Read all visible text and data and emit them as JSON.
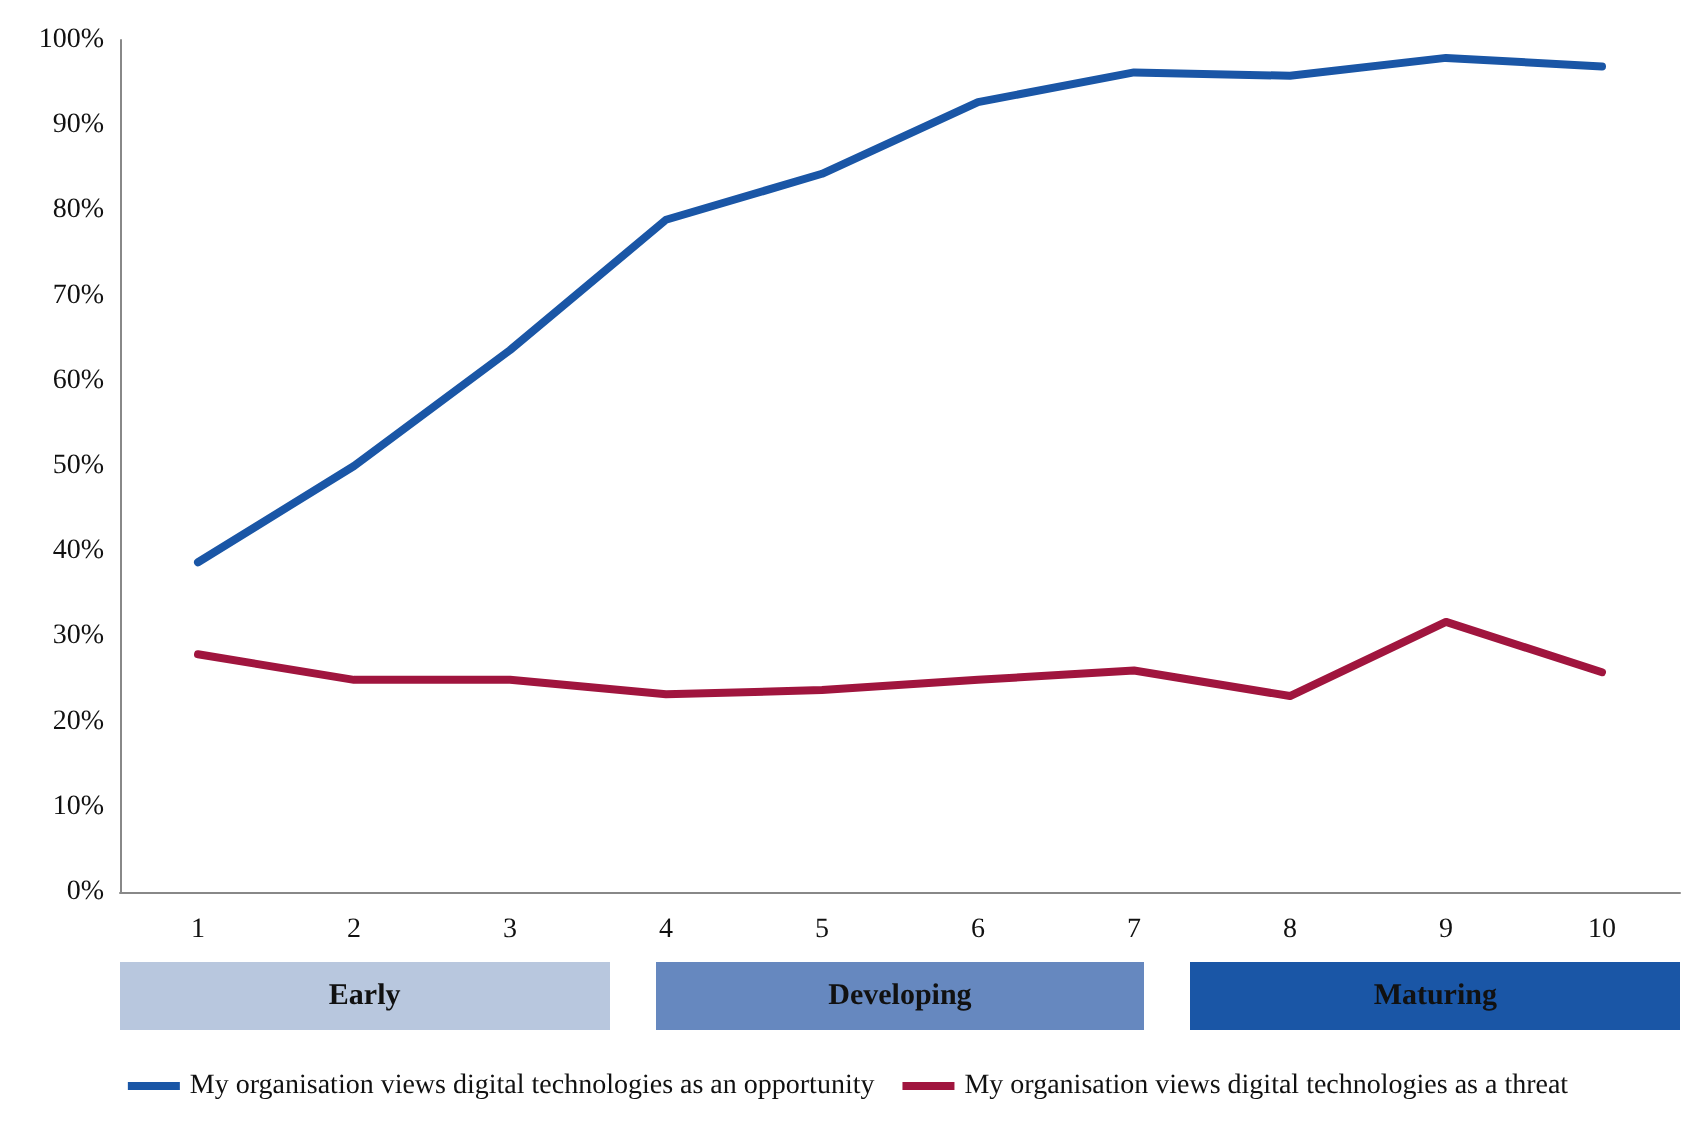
{
  "chart_data": {
    "type": "line",
    "categories": [
      "1",
      "2",
      "3",
      "4",
      "5",
      "6",
      "7",
      "8",
      "9",
      "10"
    ],
    "series": [
      {
        "name": "My organisation views digital technologies as an opportunity",
        "color": "#1a56a6",
        "values": [
          38.7,
          50,
          63.6,
          78.9,
          84.3,
          92.7,
          96.2,
          95.8,
          97.9,
          96.9
        ]
      },
      {
        "name": "My organisation views digital technologies as a threat",
        "color": "#a0153e",
        "values": [
          27.9,
          24.9,
          24.9,
          23.2,
          23.7,
          24.9,
          26,
          23,
          31.7,
          25.8
        ]
      }
    ],
    "ylim": [
      0,
      100
    ],
    "yticks": [
      {
        "value": 0,
        "label": "0%"
      },
      {
        "value": 10,
        "label": "10%"
      },
      {
        "value": 20,
        "label": "20%"
      },
      {
        "value": 30,
        "label": "30%"
      },
      {
        "value": 40,
        "label": "40%"
      },
      {
        "value": 50,
        "label": "50%"
      },
      {
        "value": 60,
        "label": "60%"
      },
      {
        "value": 70,
        "label": "70%"
      },
      {
        "value": 80,
        "label": "80%"
      },
      {
        "value": 90,
        "label": "90%"
      },
      {
        "value": 100,
        "label": "100%"
      }
    ],
    "annotations": [
      "Early",
      "Developing",
      "Maturing"
    ],
    "grid": false,
    "legend": "bottom",
    "marker": "none",
    "line_style": "solid"
  }
}
